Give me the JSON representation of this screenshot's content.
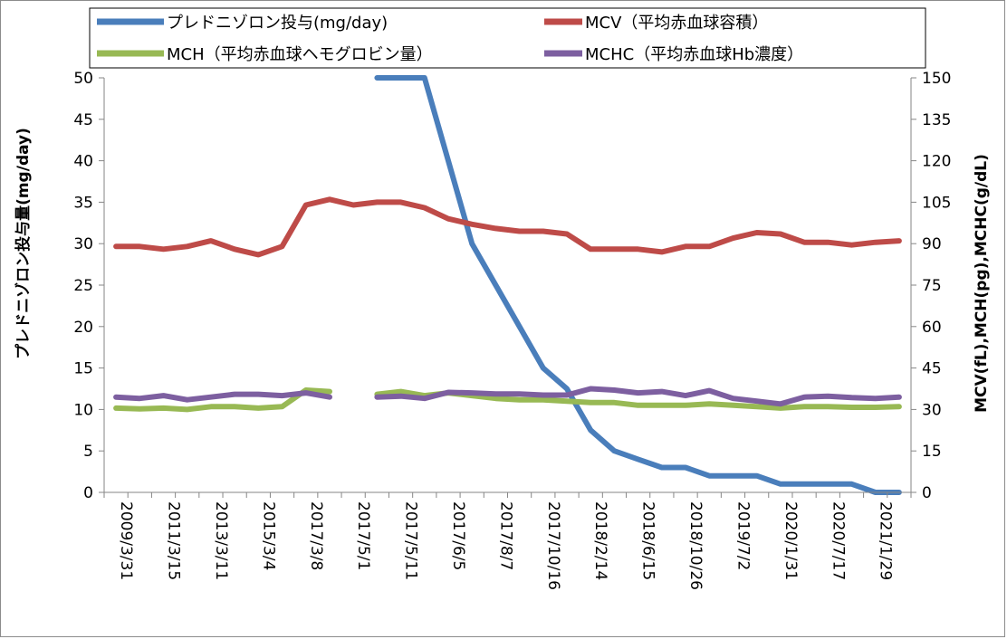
{
  "chart_data": {
    "type": "line",
    "title": "",
    "ylabel_left": "プレドニゾロン投与量(mg/day)",
    "ylabel_right": "MCV(fL),MCH(pg),MCHC(g/dL)",
    "ylim_left": [
      0,
      50
    ],
    "ylim_right": [
      0,
      150
    ],
    "yticks_left": [
      "0",
      "5",
      "10",
      "15",
      "20",
      "25",
      "30",
      "35",
      "40",
      "45",
      "50"
    ],
    "yticks_right": [
      "0",
      "15",
      "30",
      "45",
      "60",
      "75",
      "90",
      "105",
      "120",
      "135",
      "150"
    ],
    "x_tick_labels": [
      "2009/3/31",
      "2011/3/15",
      "2013/3/11",
      "2015/3/4",
      "2017/3/8",
      "2017/5/1",
      "2017/5/11",
      "2017/6/5",
      "2017/8/7",
      "2017/10/16",
      "2018/2/14",
      "2018/6/15",
      "2018/10/26",
      "2019/7/2",
      "2020/1/31",
      "2020/7/17",
      "2021/1/29"
    ],
    "n_points": 34,
    "grid": false,
    "legend_position": "top",
    "series": [
      {
        "name": "プレドニゾロン投与(mg/day)",
        "axis": "left",
        "color": "#4a7ebb",
        "values": [
          null,
          null,
          null,
          null,
          null,
          null,
          null,
          null,
          null,
          null,
          null,
          50,
          50,
          50,
          40,
          30,
          25,
          20,
          15,
          12.5,
          7.5,
          5,
          4,
          3,
          3,
          2,
          2,
          2,
          1,
          1,
          1,
          1,
          0,
          0
        ]
      },
      {
        "name": "MCV（平均赤血球容積）",
        "axis": "right",
        "color": "#be4b48",
        "values": [
          89,
          89,
          88,
          89,
          91,
          88,
          86,
          89,
          104,
          106,
          104,
          105,
          105,
          103,
          99,
          97,
          95.5,
          94.5,
          94.5,
          93.5,
          88,
          88,
          88,
          87,
          89,
          89,
          92,
          94,
          93.5,
          90.5,
          90.5,
          89.5,
          90.5,
          91
        ]
      },
      {
        "name": "MCH（平均赤血球ヘモグロビン量）",
        "axis": "right",
        "color": "#98b954",
        "values": [
          30.5,
          30.2,
          30.5,
          30,
          31,
          31,
          30.5,
          31,
          37,
          36.5,
          null,
          35.5,
          36.5,
          35,
          36,
          35,
          34,
          33.5,
          33.5,
          33,
          32.5,
          32.5,
          31.5,
          31.5,
          31.5,
          32,
          31.5,
          31,
          30.5,
          31,
          31,
          30.8,
          30.8,
          31
        ]
      },
      {
        "name": "MCHC（平均赤血球Hb濃度）",
        "axis": "right",
        "color": "#7d5fa0",
        "values": [
          34.5,
          34,
          35,
          33.5,
          34.5,
          35.5,
          35.5,
          35,
          36,
          34.5,
          null,
          34.5,
          34.8,
          34,
          36.2,
          36,
          35.6,
          35.6,
          35.2,
          35.2,
          37.5,
          37,
          36,
          36.5,
          35,
          36.8,
          34,
          33,
          32,
          34.5,
          34.8,
          34.3,
          34,
          34.5
        ]
      }
    ]
  }
}
